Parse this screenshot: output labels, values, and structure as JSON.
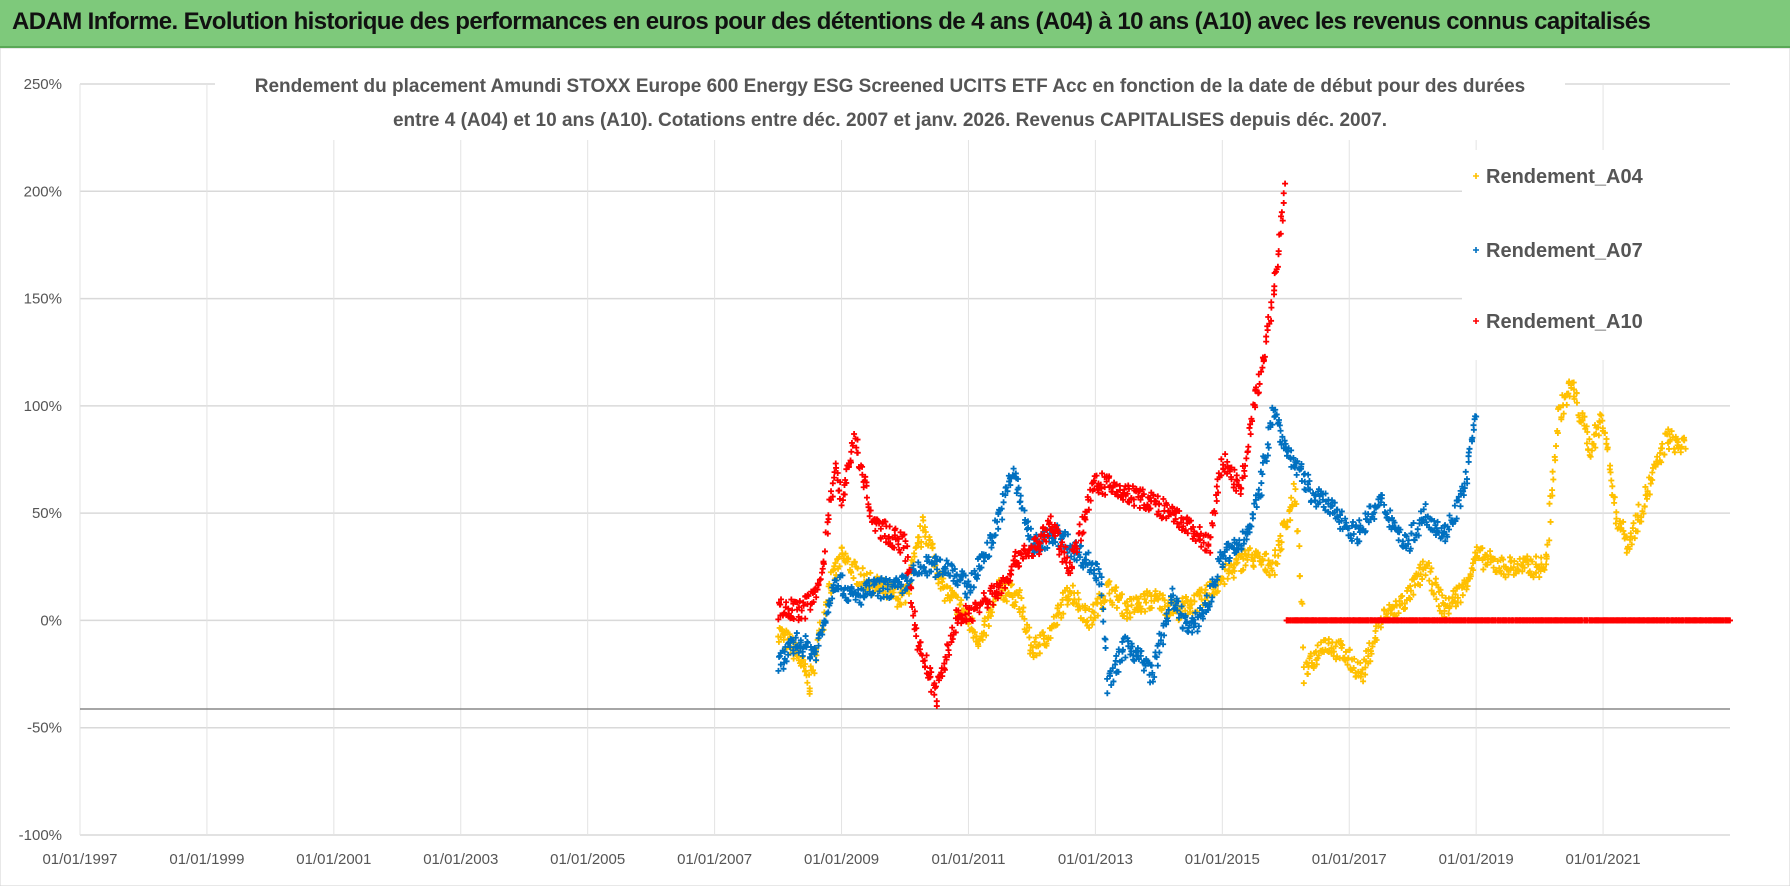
{
  "header": {
    "title": "ADAM Informe. Evolution historique des performances en euros pour des détentions de 4 ans (A04) à 10 ans (A10) avec les revenus connus capitalisés"
  },
  "chart_data": {
    "type": "scatter",
    "title_lines": [
      "Rendement du placement Amundi STOXX Europe 600 Energy ESG Screened UCITS ETF Acc en fonction de la date de début pour des durées",
      "entre 4 (A04) et 10 ans (A10). Cotations entre déc. 2007 et janv. 2026. Revenus CAPITALISES depuis déc. 2007."
    ],
    "xlabel": "",
    "ylabel": "",
    "xlim": [
      1997,
      2023
    ],
    "ylim": [
      -100,
      250
    ],
    "x_ticks": [
      "01/01/1997",
      "01/01/1999",
      "01/01/2001",
      "01/01/2003",
      "01/01/2005",
      "01/01/2007",
      "01/01/2009",
      "01/01/2011",
      "01/01/2013",
      "01/01/2015",
      "01/01/2017",
      "01/01/2019",
      "01/01/2021"
    ],
    "y_ticks": [
      "250%",
      "200%",
      "150%",
      "100%",
      "50%",
      "0%",
      "-50%",
      "-100%"
    ],
    "grid": true,
    "legend_position": "top-right",
    "series": [
      {
        "name": "Rendement_A04",
        "color": "#ffc000",
        "points": [
          [
            2008.0,
            -5
          ],
          [
            2008.3,
            -15
          ],
          [
            2008.5,
            -30
          ],
          [
            2008.8,
            15
          ],
          [
            2009.0,
            30
          ],
          [
            2009.3,
            20
          ],
          [
            2009.6,
            15
          ],
          [
            2010.0,
            10
          ],
          [
            2010.3,
            45
          ],
          [
            2010.6,
            15
          ],
          [
            2010.9,
            5
          ],
          [
            2011.2,
            -10
          ],
          [
            2011.5,
            15
          ],
          [
            2011.8,
            10
          ],
          [
            2012.0,
            -15
          ],
          [
            2012.3,
            -5
          ],
          [
            2012.6,
            15
          ],
          [
            2012.9,
            0
          ],
          [
            2013.2,
            15
          ],
          [
            2013.5,
            5
          ],
          [
            2013.9,
            10
          ],
          [
            2014.3,
            5
          ],
          [
            2014.7,
            10
          ],
          [
            2015.0,
            20
          ],
          [
            2015.4,
            30
          ],
          [
            2015.8,
            25
          ],
          [
            2016.0,
            45
          ],
          [
            2016.15,
            60
          ],
          [
            2016.3,
            -25
          ],
          [
            2016.6,
            -10
          ],
          [
            2016.9,
            -15
          ],
          [
            2017.2,
            -25
          ],
          [
            2017.5,
            0
          ],
          [
            2017.9,
            10
          ],
          [
            2018.2,
            25
          ],
          [
            2018.5,
            5
          ],
          [
            2018.8,
            15
          ],
          [
            2019.0,
            30
          ],
          [
            2019.4,
            25
          ],
          [
            2019.8,
            25
          ],
          [
            2020.1,
            25
          ],
          [
            2020.3,
            95
          ],
          [
            2020.5,
            110
          ],
          [
            2020.8,
            80
          ],
          [
            2021.0,
            95
          ],
          [
            2021.2,
            50
          ],
          [
            2021.4,
            35
          ],
          [
            2021.7,
            60
          ],
          [
            2022.0,
            85
          ],
          [
            2022.3,
            80
          ]
        ]
      },
      {
        "name": "Rendement_A07",
        "color": "#0070c0",
        "points": [
          [
            2008.0,
            -20
          ],
          [
            2008.3,
            -10
          ],
          [
            2008.6,
            -15
          ],
          [
            2008.9,
            20
          ],
          [
            2009.2,
            10
          ],
          [
            2009.5,
            15
          ],
          [
            2009.9,
            15
          ],
          [
            2010.3,
            25
          ],
          [
            2010.7,
            25
          ],
          [
            2011.0,
            15
          ],
          [
            2011.4,
            40
          ],
          [
            2011.7,
            70
          ],
          [
            2012.0,
            35
          ],
          [
            2012.4,
            40
          ],
          [
            2012.8,
            30
          ],
          [
            2013.1,
            20
          ],
          [
            2013.2,
            -30
          ],
          [
            2013.5,
            -10
          ],
          [
            2013.9,
            -25
          ],
          [
            2014.2,
            10
          ],
          [
            2014.5,
            -5
          ],
          [
            2014.8,
            10
          ],
          [
            2015.0,
            30
          ],
          [
            2015.3,
            35
          ],
          [
            2015.6,
            60
          ],
          [
            2015.8,
            100
          ],
          [
            2016.0,
            80
          ],
          [
            2016.4,
            60
          ],
          [
            2016.8,
            50
          ],
          [
            2017.1,
            40
          ],
          [
            2017.5,
            55
          ],
          [
            2017.9,
            35
          ],
          [
            2018.2,
            50
          ],
          [
            2018.5,
            40
          ],
          [
            2018.8,
            60
          ],
          [
            2019.0,
            95
          ]
        ]
      },
      {
        "name": "Rendement_A10",
        "color": "#ff0000",
        "points": [
          [
            2008.0,
            5
          ],
          [
            2008.4,
            5
          ],
          [
            2008.7,
            20
          ],
          [
            2008.9,
            75
          ],
          [
            2009.0,
            55
          ],
          [
            2009.2,
            85
          ],
          [
            2009.5,
            45
          ],
          [
            2010.0,
            35
          ],
          [
            2010.2,
            -10
          ],
          [
            2010.5,
            -35
          ],
          [
            2010.8,
            0
          ],
          [
            2011.1,
            5
          ],
          [
            2011.5,
            15
          ],
          [
            2011.8,
            30
          ],
          [
            2012.1,
            35
          ],
          [
            2012.3,
            45
          ],
          [
            2012.6,
            25
          ],
          [
            2013.0,
            65
          ],
          [
            2013.4,
            60
          ],
          [
            2013.9,
            55
          ],
          [
            2014.4,
            45
          ],
          [
            2014.8,
            35
          ],
          [
            2015.0,
            75
          ],
          [
            2015.3,
            60
          ],
          [
            2015.5,
            100
          ],
          [
            2015.7,
            130
          ],
          [
            2015.85,
            160
          ],
          [
            2016.0,
            205
          ],
          [
            2016.01,
            0
          ],
          [
            2023.0,
            0
          ]
        ]
      }
    ]
  }
}
